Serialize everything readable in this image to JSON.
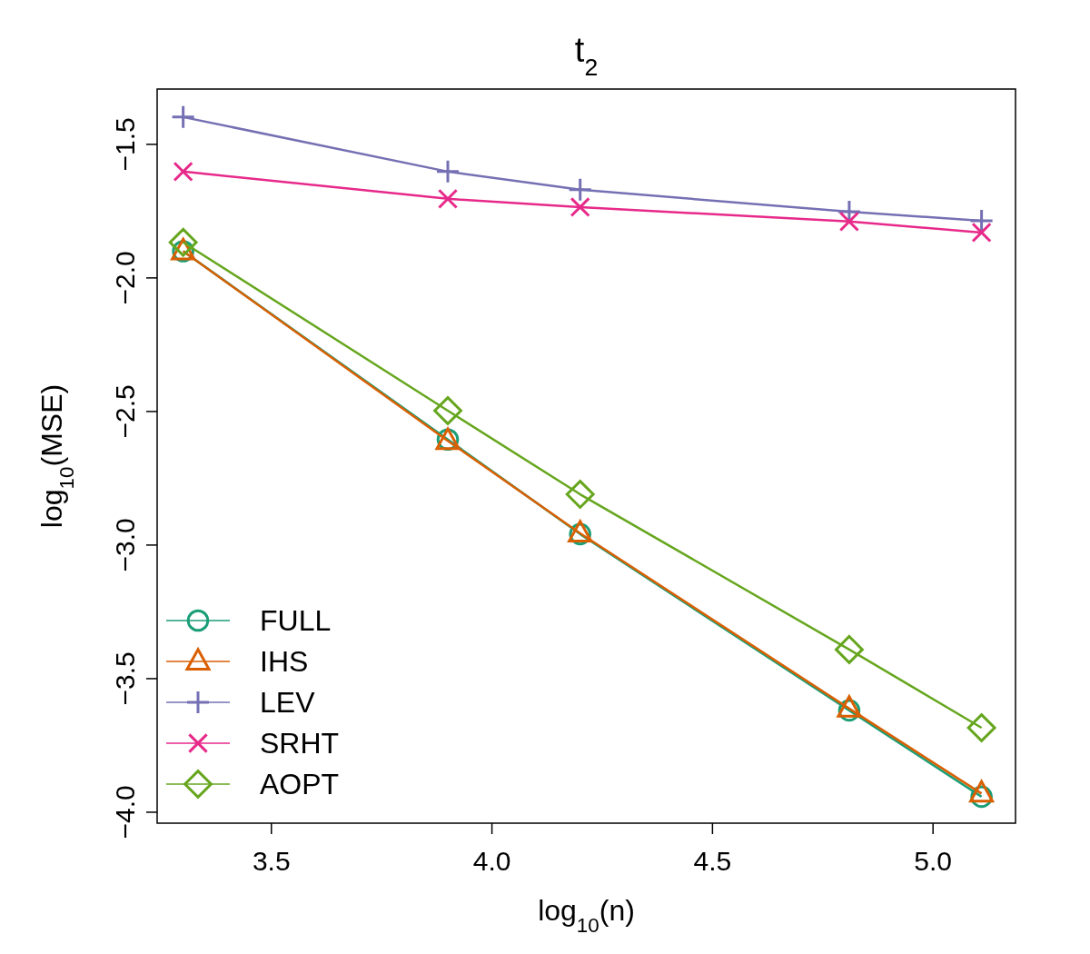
{
  "chart_data": {
    "type": "line",
    "title": "t$_{2}$",
    "xlabel": "log$_{10}$(n)",
    "ylabel": "log$_{10}$(MSE)",
    "x": [
      3.3,
      3.9,
      4.2,
      4.81,
      5.11
    ],
    "xlim": [
      3.241,
      5.187
    ],
    "xticks": [
      3.5,
      {
        "value": 4,
        "label": "4.0"
      },
      4.5,
      {
        "value": 5,
        "label": "5.0"
      }
    ],
    "ylim": [
      -4.041,
      -1.293
    ],
    "yticks": [
      {
        "value": -4,
        "label": "−4.0"
      },
      -3.5,
      {
        "value": -3,
        "label": "−3.0"
      },
      -2.5,
      {
        "value": -2,
        "label": "−2.0"
      },
      -1.5
    ],
    "grid": false,
    "legend": "bottom left",
    "line_style": "solid",
    "series": [
      {
        "name": "FULL",
        "color": "#1b9e77",
        "marker": "circle",
        "values": [
          -1.9,
          -2.605,
          -2.959,
          -3.619,
          -3.942
        ]
      },
      {
        "name": "IHS",
        "color": "#d95f02",
        "marker": "triangle",
        "values": [
          -1.9,
          -2.61,
          -2.956,
          -3.612,
          -3.93
        ]
      },
      {
        "name": "LEV",
        "color": "#7570b3",
        "marker": "cross",
        "values": [
          -1.398,
          -1.602,
          -1.67,
          -1.752,
          -1.786
        ]
      },
      {
        "name": "SRHT",
        "color": "#e7298a",
        "marker": "x",
        "values": [
          -1.602,
          -1.704,
          -1.735,
          -1.789,
          -1.83
        ]
      },
      {
        "name": "AOPT",
        "color": "#66a61e",
        "marker": "diamond",
        "values": [
          -1.867,
          -2.497,
          -2.81,
          -3.391,
          -3.684
        ]
      }
    ]
  }
}
